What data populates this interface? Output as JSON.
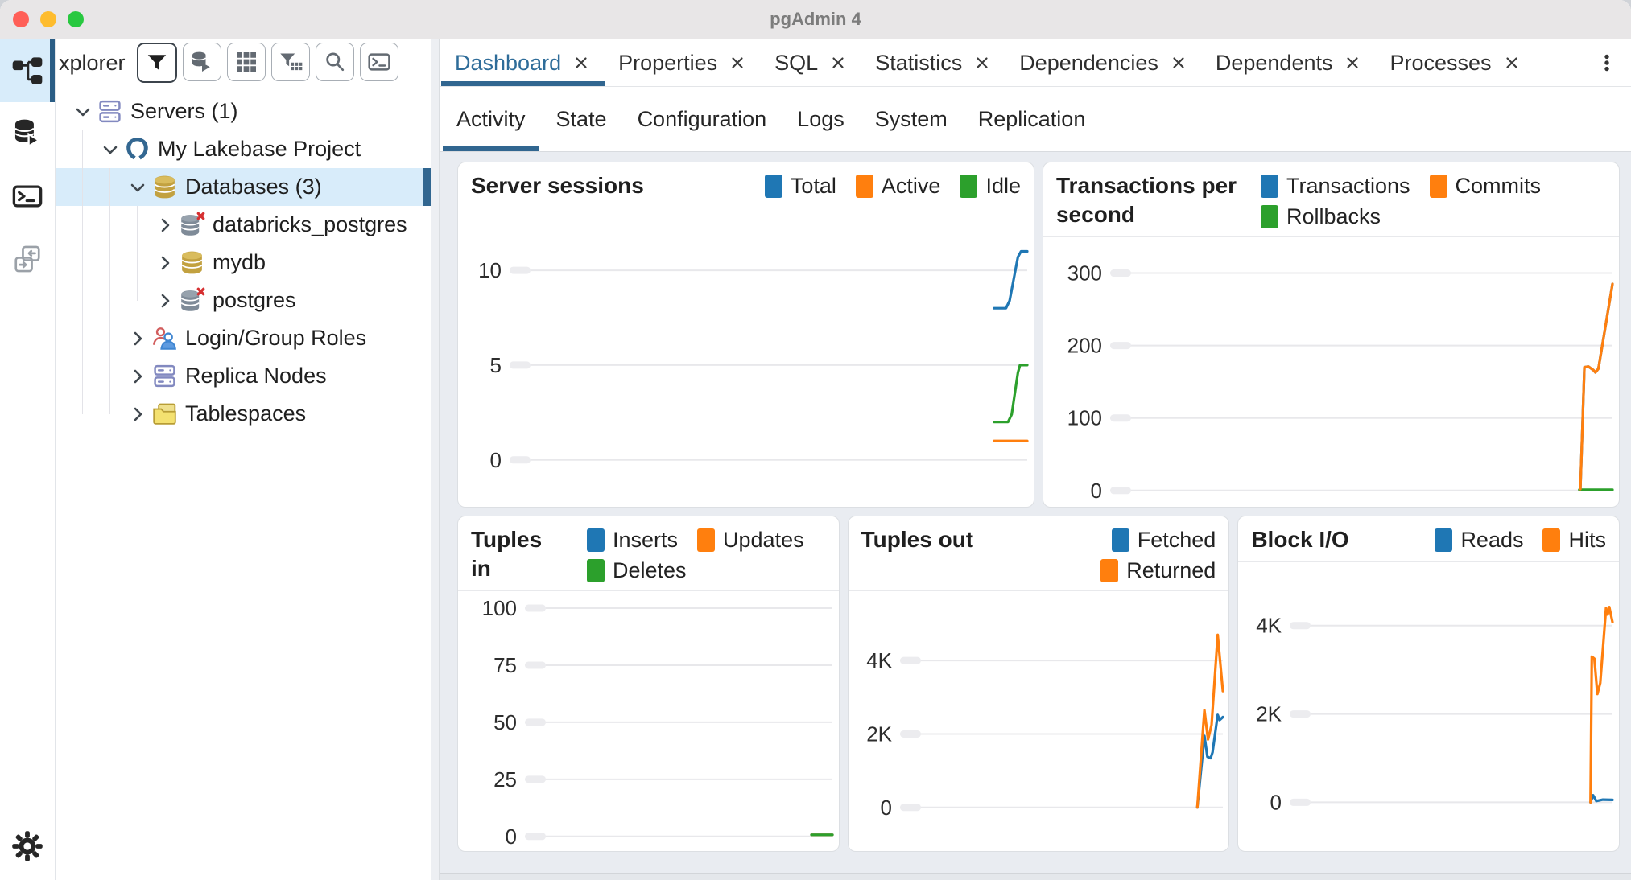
{
  "titlebar": {
    "title": "pgAdmin 4",
    "traffic_lights": {
      "close": "#ff5f57",
      "minimize": "#febc2e",
      "zoom": "#28c840"
    }
  },
  "icon_strip": {
    "items": [
      {
        "name": "object-explorer",
        "icon": "object-explorer-icon",
        "active": true
      },
      {
        "name": "query-tool",
        "icon": "query-tool-icon"
      },
      {
        "name": "psql-tool",
        "icon": "psql-terminal-icon"
      },
      {
        "name": "schema-diff",
        "icon": "schema-diff-icon",
        "disabled": true
      }
    ],
    "bottom": {
      "name": "preferences",
      "icon": "gear-icon"
    }
  },
  "explorer": {
    "header_label": "xplorer",
    "toolbar_buttons": [
      {
        "name": "filter",
        "icon": "filter-icon",
        "emphasized": true
      },
      {
        "name": "query-data",
        "icon": "database-run-icon"
      },
      {
        "name": "view-data",
        "icon": "table-grid-icon"
      },
      {
        "name": "filtered-rows",
        "icon": "filter-table-icon"
      },
      {
        "name": "search-objects",
        "icon": "search-icon"
      },
      {
        "name": "psql",
        "icon": "terminal-icon"
      }
    ],
    "tree": [
      {
        "label": "Servers (1)",
        "icon": "server-stack-icon",
        "level": 0,
        "expanded": true
      },
      {
        "label": "My Lakebase Project",
        "icon": "postgres-server-icon",
        "level": 1,
        "expanded": true
      },
      {
        "label": "Databases (3)",
        "icon": "database-gold-icon",
        "level": 2,
        "expanded": true,
        "selected": true
      },
      {
        "label": "databricks_postgres",
        "icon": "database-disconnected-icon",
        "level": 3
      },
      {
        "label": "mydb",
        "icon": "database-gold-icon",
        "level": 3
      },
      {
        "label": "postgres",
        "icon": "database-disconnected-icon",
        "level": 3
      },
      {
        "label": "Login/Group Roles",
        "icon": "login-roles-icon",
        "level": 2
      },
      {
        "label": "Replica Nodes",
        "icon": "server-stack-icon",
        "level": 2
      },
      {
        "label": "Tablespaces",
        "icon": "tablespace-folder-icon",
        "level": 2
      }
    ]
  },
  "tabs": {
    "items": [
      {
        "label": "Dashboard",
        "active": true
      },
      {
        "label": "Properties"
      },
      {
        "label": "SQL"
      },
      {
        "label": "Statistics"
      },
      {
        "label": "Dependencies"
      },
      {
        "label": "Dependents"
      },
      {
        "label": "Processes"
      }
    ],
    "overflow_menu_icon": "kebab-menu-icon"
  },
  "subtabs": {
    "active": "Activity",
    "items": [
      "Activity",
      "State",
      "Configuration",
      "Logs",
      "System",
      "Replication"
    ]
  },
  "colors": {
    "accent": "#316690",
    "tab_active_text": "#2e6c99",
    "selection_bg": "#d8ecfa",
    "chart_blue": "#1f77b4",
    "chart_orange": "#ff7f0e",
    "chart_green": "#2ca02c"
  },
  "chart_data": [
    {
      "type": "line",
      "title": "Server sessions",
      "legend_align": "end",
      "ylim": [
        -2.3,
        13.1
      ],
      "grid": true,
      "legend_position": "top-right",
      "yticks": [
        {
          "v": 0,
          "label": "0"
        },
        {
          "v": 5,
          "label": "5"
        },
        {
          "v": 10,
          "label": "10"
        }
      ],
      "series": [
        {
          "name": "Total",
          "color": "#1f77b4",
          "z": 1,
          "points": [
            [
              0.936,
              8
            ],
            [
              0.959,
              8
            ],
            [
              0.966,
              8.4
            ],
            [
              0.982,
              10.7
            ],
            [
              0.988,
              11
            ],
            [
              1,
              11
            ]
          ]
        },
        {
          "name": "Active",
          "color": "#ff7f0e",
          "z": 3,
          "points": [
            [
              0.936,
              1
            ],
            [
              1,
              1
            ]
          ]
        },
        {
          "name": "Idle",
          "color": "#2ca02c",
          "z": 2,
          "points": [
            [
              0.936,
              2
            ],
            [
              0.963,
              2
            ],
            [
              0.97,
              2.4
            ],
            [
              0.982,
              4.6
            ],
            [
              0.986,
              5
            ],
            [
              1,
              5
            ]
          ]
        }
      ]
    },
    {
      "type": "line",
      "title": "Transactions per second",
      "legend_align": "start",
      "ylim": [
        -18,
        345
      ],
      "grid": true,
      "legend_position": "top",
      "yticks": [
        {
          "v": 0,
          "label": "0"
        },
        {
          "v": 100,
          "label": "100"
        },
        {
          "v": 200,
          "label": "200"
        },
        {
          "v": 300,
          "label": "300"
        }
      ],
      "series": [
        {
          "name": "Transactions",
          "color": "#1f77b4",
          "z": 1,
          "points": [
            [
              0.936,
              2
            ],
            [
              0.944,
              170
            ],
            [
              0.952,
              171
            ],
            [
              0.962,
              166
            ],
            [
              0.966,
              163
            ],
            [
              0.972,
              168
            ],
            [
              1,
              285
            ]
          ]
        },
        {
          "name": "Commits",
          "color": "#ff7f0e",
          "z": 3,
          "points": [
            [
              0.936,
              2
            ],
            [
              0.944,
              170
            ],
            [
              0.952,
              171
            ],
            [
              0.962,
              166
            ],
            [
              0.966,
              163
            ],
            [
              0.972,
              168
            ],
            [
              1,
              285
            ]
          ]
        },
        {
          "name": "Rollbacks",
          "color": "#2ca02c",
          "z": 2,
          "points": [
            [
              0.934,
              1
            ],
            [
              1,
              1
            ]
          ]
        }
      ]
    },
    {
      "type": "line",
      "title": "Tuples in",
      "legend_align": "start",
      "ylim": [
        -5,
        106
      ],
      "grid": true,
      "legend_position": "top",
      "yticks": [
        {
          "v": 0,
          "label": "0"
        },
        {
          "v": 25,
          "label": "25"
        },
        {
          "v": 50,
          "label": "50"
        },
        {
          "v": 75,
          "label": "75"
        },
        {
          "v": 100,
          "label": "100"
        }
      ],
      "series": [
        {
          "name": "Inserts",
          "color": "#1f77b4",
          "z": 1,
          "points": [
            [
              0.932,
              0.7
            ],
            [
              1,
              0.7
            ]
          ]
        },
        {
          "name": "Updates",
          "color": "#ff7f0e",
          "z": 2,
          "points": [
            [
              0.932,
              0.7
            ],
            [
              1,
              0.7
            ]
          ]
        },
        {
          "name": "Deletes",
          "color": "#2ca02c",
          "z": 3,
          "points": [
            [
              0.932,
              0.7
            ],
            [
              1,
              0.7
            ]
          ]
        }
      ]
    },
    {
      "type": "line",
      "title": "Tuples out",
      "legend_align": "end",
      "ylim": [
        -1100,
        5800
      ],
      "grid": true,
      "legend_position": "top-right",
      "yticks": [
        {
          "v": 0,
          "label": "0"
        },
        {
          "v": 2000,
          "label": "2K"
        },
        {
          "v": 4000,
          "label": "4K"
        }
      ],
      "series": [
        {
          "name": "Fetched",
          "color": "#1f77b4",
          "z": 1,
          "points": [
            [
              0.921,
              0
            ],
            [
              0.943,
              1950
            ],
            [
              0.952,
              1380
            ],
            [
              0.962,
              1340
            ],
            [
              0.968,
              1500
            ],
            [
              0.984,
              2520
            ],
            [
              0.99,
              2380
            ],
            [
              1,
              2460
            ]
          ]
        },
        {
          "name": "Returned",
          "color": "#ff7f0e",
          "z": 2,
          "points": [
            [
              0.921,
              0
            ],
            [
              0.943,
              2650
            ],
            [
              0.954,
              1850
            ],
            [
              0.965,
              2250
            ],
            [
              0.984,
              4700
            ],
            [
              1,
              3170
            ]
          ]
        }
      ]
    },
    {
      "type": "line",
      "title": "Block I/O",
      "legend_align": "end",
      "ylim": [
        -1030,
        5360
      ],
      "grid": true,
      "legend_position": "top-right",
      "yticks": [
        {
          "v": 0,
          "label": "0"
        },
        {
          "v": 2000,
          "label": "2K"
        },
        {
          "v": 4000,
          "label": "4K"
        }
      ],
      "series": [
        {
          "name": "Reads",
          "color": "#1f77b4",
          "z": 1,
          "points": [
            [
              0.932,
              0
            ],
            [
              0.94,
              160
            ],
            [
              0.95,
              30
            ],
            [
              0.97,
              60
            ],
            [
              1,
              55
            ]
          ]
        },
        {
          "name": "Hits",
          "color": "#ff7f0e",
          "z": 2,
          "points": [
            [
              0.932,
              0
            ],
            [
              0.936,
              3300
            ],
            [
              0.944,
              3250
            ],
            [
              0.953,
              2450
            ],
            [
              0.962,
              2700
            ],
            [
              0.98,
              4400
            ],
            [
              0.985,
              4250
            ],
            [
              0.99,
              4420
            ],
            [
              1,
              4080
            ]
          ]
        }
      ]
    }
  ]
}
